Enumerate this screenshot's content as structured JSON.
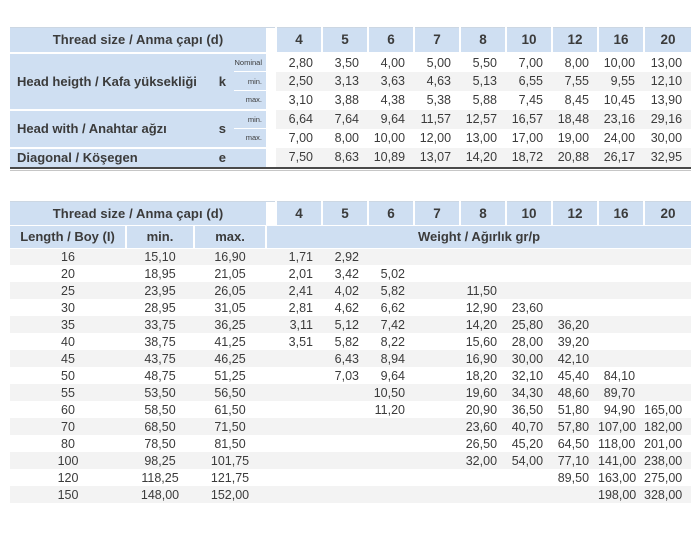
{
  "colors": {
    "header_blue": "#cfdff2",
    "stripe_gray": "#f3f3f3",
    "text": "#3b3b3b",
    "dark_rule": "#4a4a4a"
  },
  "table1": {
    "title": "Thread size / Anma çapı (d)",
    "columns": [
      "4",
      "5",
      "6",
      "7",
      "8",
      "10",
      "12",
      "16",
      "20"
    ],
    "groups": [
      {
        "label": "Head heigth / Kafa yüksekliği",
        "symbol": "k",
        "rows": [
          {
            "sub": "Nominal",
            "values": [
              "2,80",
              "3,50",
              "4,00",
              "5,00",
              "5,50",
              "7,00",
              "8,00",
              "10,00",
              "13,00"
            ]
          },
          {
            "sub": "min.",
            "values": [
              "2,50",
              "3,13",
              "3,63",
              "4,63",
              "5,13",
              "6,55",
              "7,55",
              "9,55",
              "12,10"
            ]
          },
          {
            "sub": "max.",
            "values": [
              "3,10",
              "3,88",
              "4,38",
              "5,38",
              "5,88",
              "7,45",
              "8,45",
              "10,45",
              "13,90"
            ]
          }
        ]
      },
      {
        "label": "Head with / Anahtar ağzı",
        "symbol": "s",
        "rows": [
          {
            "sub": "min.",
            "values": [
              "6,64",
              "7,64",
              "9,64",
              "11,57",
              "12,57",
              "16,57",
              "18,48",
              "23,16",
              "29,16"
            ]
          },
          {
            "sub": "max.",
            "values": [
              "7,00",
              "8,00",
              "10,00",
              "12,00",
              "13,00",
              "17,00",
              "19,00",
              "24,00",
              "30,00"
            ]
          }
        ]
      },
      {
        "label": "Diagonal / Köşegen",
        "symbol": "e",
        "rows": [
          {
            "sub": "",
            "values": [
              "7,50",
              "8,63",
              "10,89",
              "13,07",
              "14,20",
              "18,72",
              "20,88",
              "26,17",
              "32,95"
            ]
          }
        ]
      }
    ]
  },
  "table2": {
    "title": "Thread size / Anma çapı (d)",
    "columns": [
      "4",
      "5",
      "6",
      "7",
      "8",
      "10",
      "12",
      "16",
      "20"
    ],
    "header": {
      "length": "Length / Boy (I)",
      "min": "min.",
      "max": "max.",
      "weight": "Weight / Ağırlık gr/p"
    },
    "rows": [
      {
        "length": "16",
        "min": "15,10",
        "max": "16,90",
        "weights": [
          "1,71",
          "2,92",
          "",
          "",
          "",
          "",
          "",
          "",
          ""
        ]
      },
      {
        "length": "20",
        "min": "18,95",
        "max": "21,05",
        "weights": [
          "2,01",
          "3,42",
          "5,02",
          "",
          "",
          "",
          "",
          "",
          ""
        ]
      },
      {
        "length": "25",
        "min": "23,95",
        "max": "26,05",
        "weights": [
          "2,41",
          "4,02",
          "5,82",
          "",
          "11,50",
          "",
          "",
          "",
          ""
        ]
      },
      {
        "length": "30",
        "min": "28,95",
        "max": "31,05",
        "weights": [
          "2,81",
          "4,62",
          "6,62",
          "",
          "12,90",
          "23,60",
          "",
          "",
          ""
        ]
      },
      {
        "length": "35",
        "min": "33,75",
        "max": "36,25",
        "weights": [
          "3,11",
          "5,12",
          "7,42",
          "",
          "14,20",
          "25,80",
          "36,20",
          "",
          ""
        ]
      },
      {
        "length": "40",
        "min": "38,75",
        "max": "41,25",
        "weights": [
          "3,51",
          "5,82",
          "8,22",
          "",
          "15,60",
          "28,00",
          "39,20",
          "",
          ""
        ]
      },
      {
        "length": "45",
        "min": "43,75",
        "max": "46,25",
        "weights": [
          "",
          "6,43",
          "8,94",
          "",
          "16,90",
          "30,00",
          "42,10",
          "",
          ""
        ]
      },
      {
        "length": "50",
        "min": "48,75",
        "max": "51,25",
        "weights": [
          "",
          "7,03",
          "9,64",
          "",
          "18,20",
          "32,10",
          "45,40",
          "84,10",
          ""
        ]
      },
      {
        "length": "55",
        "min": "53,50",
        "max": "56,50",
        "weights": [
          "",
          "",
          "10,50",
          "",
          "19,60",
          "34,30",
          "48,60",
          "89,70",
          ""
        ]
      },
      {
        "length": "60",
        "min": "58,50",
        "max": "61,50",
        "weights": [
          "",
          "",
          "11,20",
          "",
          "20,90",
          "36,50",
          "51,80",
          "94,90",
          "165,00"
        ]
      },
      {
        "length": "70",
        "min": "68,50",
        "max": "71,50",
        "weights": [
          "",
          "",
          "",
          "",
          "23,60",
          "40,70",
          "57,80",
          "107,00",
          "182,00"
        ]
      },
      {
        "length": "80",
        "min": "78,50",
        "max": "81,50",
        "weights": [
          "",
          "",
          "",
          "",
          "26,50",
          "45,20",
          "64,50",
          "118,00",
          "201,00"
        ]
      },
      {
        "length": "100",
        "min": "98,25",
        "max": "101,75",
        "weights": [
          "",
          "",
          "",
          "",
          "32,00",
          "54,00",
          "77,10",
          "141,00",
          "238,00"
        ]
      },
      {
        "length": "120",
        "min": "118,25",
        "max": "121,75",
        "weights": [
          "",
          "",
          "",
          "",
          "",
          "",
          "89,50",
          "163,00",
          "275,00"
        ]
      },
      {
        "length": "150",
        "min": "148,00",
        "max": "152,00",
        "weights": [
          "",
          "",
          "",
          "",
          "",
          "",
          "",
          "198,00",
          "328,00"
        ]
      }
    ]
  }
}
